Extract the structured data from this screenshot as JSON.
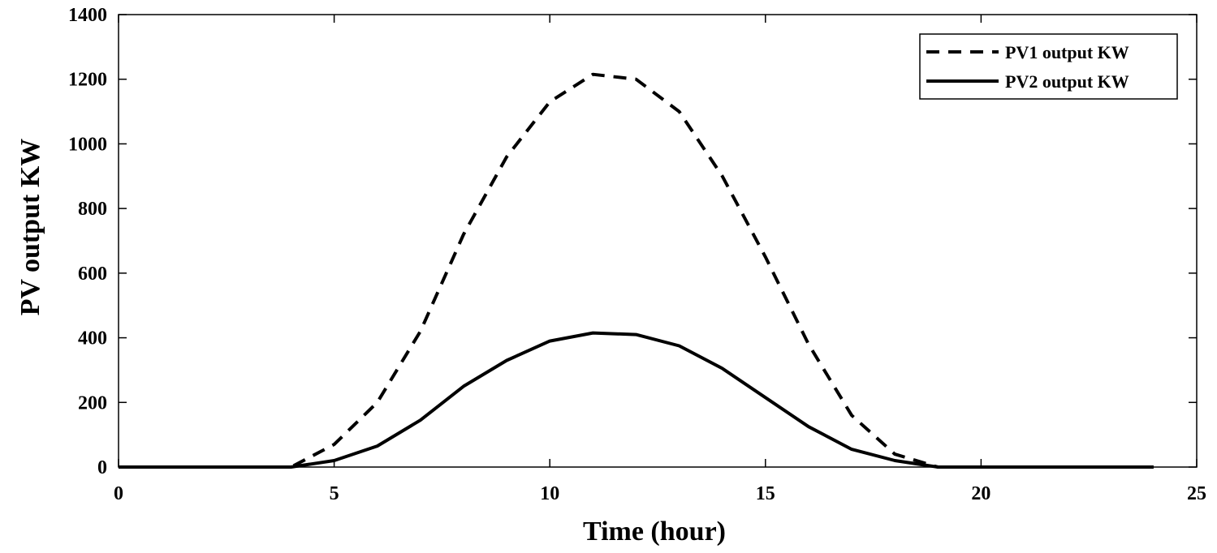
{
  "chart_data": {
    "type": "line",
    "title": "",
    "xlabel": "Time (hour)",
    "ylabel": "PV output KW",
    "xlim": [
      0,
      25
    ],
    "ylim": [
      0,
      1400
    ],
    "xticks": [
      0,
      5,
      10,
      15,
      20,
      25
    ],
    "yticks": [
      0,
      200,
      400,
      600,
      800,
      1000,
      1200,
      1400
    ],
    "grid": false,
    "legend_position": "top-right",
    "series": [
      {
        "name": "PV1 output KW",
        "style": "dashed",
        "color": "#000000",
        "x": [
          0,
          1,
          2,
          3,
          4,
          5,
          6,
          7,
          8,
          9,
          10,
          11,
          12,
          13,
          14,
          15,
          16,
          17,
          18,
          19,
          20,
          21,
          22,
          23,
          24
        ],
        "y": [
          0,
          0,
          0,
          0,
          0,
          70,
          200,
          420,
          720,
          960,
          1130,
          1215,
          1200,
          1100,
          900,
          650,
          380,
          160,
          40,
          0,
          0,
          0,
          0,
          0,
          0
        ]
      },
      {
        "name": "PV2 output KW",
        "style": "solid",
        "color": "#000000",
        "x": [
          0,
          1,
          2,
          3,
          4,
          5,
          6,
          7,
          8,
          9,
          10,
          11,
          12,
          13,
          14,
          15,
          16,
          17,
          18,
          19,
          20,
          21,
          22,
          23,
          24
        ],
        "y": [
          0,
          0,
          0,
          0,
          0,
          20,
          65,
          145,
          250,
          330,
          390,
          415,
          410,
          375,
          305,
          215,
          125,
          55,
          20,
          0,
          0,
          0,
          0,
          0,
          0
        ]
      }
    ]
  }
}
